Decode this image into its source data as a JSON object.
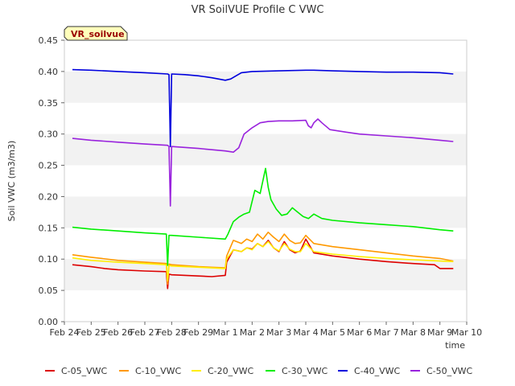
{
  "chart_data": {
    "type": "line",
    "title": "VR SoilVUE Profile C VWC",
    "xlabel": "time",
    "ylabel": "Soil VWC (m3/m3)",
    "annotation": "VR_soilvue",
    "ylim": [
      0.0,
      0.45
    ],
    "xlim": [
      0,
      15
    ],
    "yticks": [
      0.0,
      0.05,
      0.1,
      0.15,
      0.2,
      0.25,
      0.3,
      0.35,
      0.4,
      0.45
    ],
    "ytick_labels": [
      "0.00",
      "0.05",
      "0.10",
      "0.15",
      "0.20",
      "0.25",
      "0.30",
      "0.35",
      "0.40",
      "0.45"
    ],
    "xticks": [
      0,
      1,
      2,
      3,
      4,
      5,
      6,
      7,
      8,
      9,
      10,
      11,
      12,
      13,
      14,
      15
    ],
    "xtick_labels": [
      "Feb 24",
      "Feb 25",
      "Feb 26",
      "Feb 27",
      "Feb 28",
      "Feb 29",
      "Mar 1",
      "Mar 2",
      "Mar 3",
      "Mar 4",
      "Mar 5",
      "Mar 6",
      "Mar 7",
      "Mar 8",
      "Mar 9",
      "Mar 10"
    ],
    "grid": "horizontal bands",
    "legend_position": "bottom",
    "series": [
      {
        "name": "C-05_VWC",
        "color": "#dd0000",
        "x": [
          0.3,
          1.0,
          1.5,
          2.0,
          3.0,
          3.8,
          3.85,
          3.9,
          4.0,
          4.5,
          5.0,
          5.5,
          6.0,
          6.05,
          6.3,
          6.6,
          6.8,
          7.0,
          7.2,
          7.4,
          7.6,
          7.8,
          8.0,
          8.2,
          8.4,
          8.6,
          8.8,
          9.0,
          9.3,
          10.0,
          11.0,
          12.0,
          13.0,
          13.8,
          14.0,
          14.5
        ],
        "y": [
          0.091,
          0.088,
          0.085,
          0.083,
          0.081,
          0.08,
          0.053,
          0.076,
          0.075,
          0.074,
          0.073,
          0.072,
          0.074,
          0.095,
          0.115,
          0.112,
          0.118,
          0.116,
          0.125,
          0.12,
          0.13,
          0.118,
          0.112,
          0.128,
          0.115,
          0.11,
          0.113,
          0.132,
          0.11,
          0.105,
          0.1,
          0.096,
          0.093,
          0.091,
          0.085,
          0.085
        ]
      },
      {
        "name": "C-10_VWC",
        "color": "#ff9900",
        "x": [
          0.3,
          1.0,
          2.0,
          3.0,
          3.8,
          3.85,
          3.9,
          4.0,
          5.0,
          6.0,
          6.05,
          6.3,
          6.6,
          6.8,
          7.0,
          7.2,
          7.4,
          7.6,
          7.8,
          8.0,
          8.2,
          8.4,
          8.6,
          8.8,
          9.0,
          9.3,
          10.0,
          11.0,
          12.0,
          13.0,
          14.0,
          14.5
        ],
        "y": [
          0.107,
          0.103,
          0.098,
          0.095,
          0.093,
          0.06,
          0.092,
          0.091,
          0.088,
          0.086,
          0.105,
          0.13,
          0.125,
          0.132,
          0.128,
          0.14,
          0.132,
          0.143,
          0.135,
          0.128,
          0.14,
          0.13,
          0.125,
          0.126,
          0.138,
          0.125,
          0.12,
          0.115,
          0.11,
          0.105,
          0.101,
          0.097
        ]
      },
      {
        "name": "C-20_VWC",
        "color": "#ffee00",
        "x": [
          0.3,
          1.0,
          2.0,
          3.0,
          3.8,
          3.85,
          3.9,
          4.0,
          5.0,
          6.0,
          6.05,
          6.3,
          6.6,
          6.8,
          7.0,
          7.2,
          7.4,
          7.6,
          7.8,
          8.0,
          8.2,
          8.4,
          8.6,
          8.8,
          9.0,
          9.3,
          10.0,
          11.0,
          12.0,
          13.0,
          14.0,
          14.5
        ],
        "y": [
          0.102,
          0.098,
          0.095,
          0.093,
          0.091,
          0.065,
          0.09,
          0.089,
          0.087,
          0.085,
          0.1,
          0.115,
          0.112,
          0.118,
          0.115,
          0.125,
          0.12,
          0.128,
          0.118,
          0.113,
          0.125,
          0.116,
          0.112,
          0.112,
          0.125,
          0.112,
          0.108,
          0.104,
          0.101,
          0.099,
          0.097,
          0.096
        ]
      },
      {
        "name": "C-30_VWC",
        "color": "#00ee00",
        "x": [
          0.3,
          1.0,
          2.0,
          3.0,
          3.8,
          3.85,
          3.9,
          4.0,
          5.0,
          6.0,
          6.1,
          6.3,
          6.5,
          6.7,
          6.9,
          7.1,
          7.3,
          7.5,
          7.6,
          7.7,
          7.9,
          8.1,
          8.3,
          8.5,
          8.7,
          8.9,
          9.1,
          9.3,
          9.6,
          10.0,
          11.0,
          12.0,
          13.0,
          14.0,
          14.5
        ],
        "y": [
          0.151,
          0.148,
          0.145,
          0.142,
          0.14,
          0.09,
          0.138,
          0.138,
          0.135,
          0.132,
          0.14,
          0.16,
          0.167,
          0.172,
          0.175,
          0.21,
          0.205,
          0.245,
          0.215,
          0.195,
          0.18,
          0.17,
          0.172,
          0.182,
          0.175,
          0.168,
          0.165,
          0.172,
          0.165,
          0.162,
          0.158,
          0.155,
          0.152,
          0.147,
          0.145
        ]
      },
      {
        "name": "C-40_VWC",
        "color": "#0000dd",
        "x": [
          0.3,
          1.0,
          2.0,
          3.0,
          3.85,
          3.9,
          3.95,
          4.0,
          4.5,
          5.0,
          5.5,
          6.0,
          6.2,
          6.4,
          6.6,
          7.0,
          8.0,
          9.0,
          9.3,
          10.0,
          11.0,
          12.0,
          13.0,
          14.0,
          14.5
        ],
        "y": [
          0.403,
          0.402,
          0.4,
          0.398,
          0.396,
          0.395,
          0.28,
          0.396,
          0.395,
          0.393,
          0.39,
          0.386,
          0.388,
          0.393,
          0.398,
          0.4,
          0.401,
          0.402,
          0.402,
          0.401,
          0.4,
          0.399,
          0.399,
          0.398,
          0.396
        ]
      },
      {
        "name": "C-50_VWC",
        "color": "#9922dd",
        "x": [
          0.3,
          1.0,
          2.0,
          3.0,
          3.85,
          3.9,
          3.95,
          4.0,
          5.0,
          6.0,
          6.3,
          6.5,
          6.7,
          7.0,
          7.3,
          7.6,
          8.0,
          8.5,
          9.0,
          9.1,
          9.2,
          9.3,
          9.45,
          9.6,
          9.9,
          10.5,
          11.0,
          12.0,
          13.0,
          14.0,
          14.5
        ],
        "y": [
          0.293,
          0.29,
          0.287,
          0.284,
          0.282,
          0.28,
          0.185,
          0.28,
          0.277,
          0.273,
          0.271,
          0.278,
          0.3,
          0.31,
          0.318,
          0.32,
          0.321,
          0.321,
          0.322,
          0.313,
          0.31,
          0.318,
          0.324,
          0.318,
          0.307,
          0.303,
          0.3,
          0.297,
          0.294,
          0.29,
          0.288
        ]
      }
    ]
  }
}
